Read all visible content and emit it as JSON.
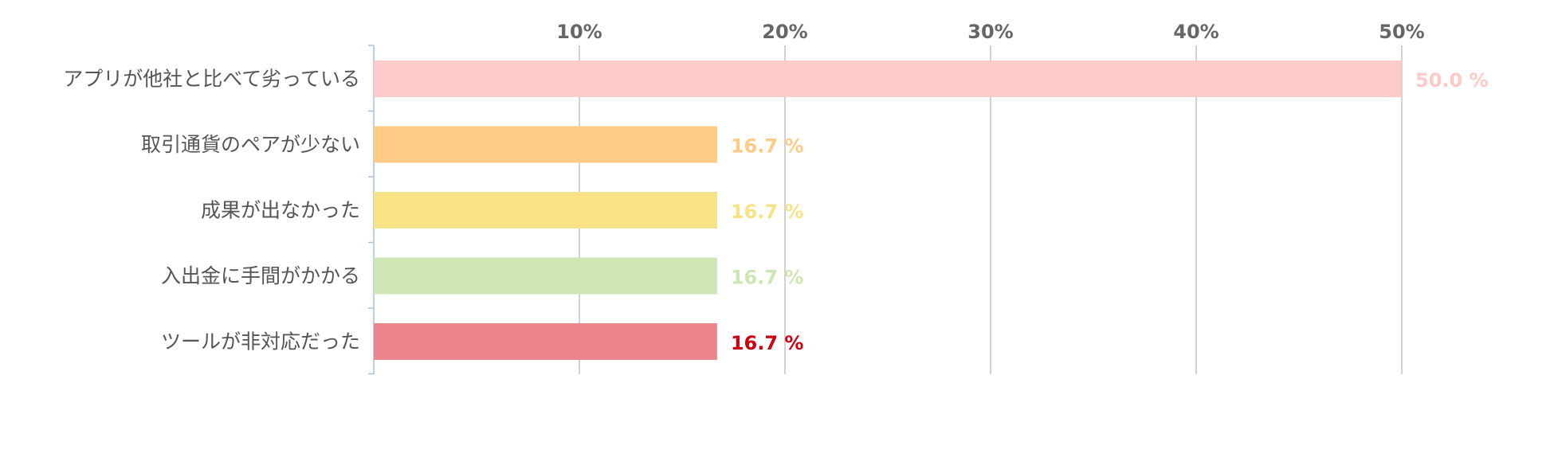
{
  "chart_data": {
    "type": "bar",
    "orientation": "horizontal",
    "categories": [
      "アプリが他社と比べて劣っている",
      "取引通貨のペアが少ない",
      "成果が出なかった",
      "入出金に手間がかかる",
      "ツールが非対応だった"
    ],
    "values": [
      50.0,
      16.7,
      16.7,
      16.7,
      16.7
    ],
    "value_labels": [
      "50.0 %",
      "16.7 %",
      "16.7 %",
      "16.7 %",
      "16.7 %"
    ],
    "bar_colors": [
      "#fdcaca",
      "#fdcb85",
      "#f7e286",
      "#cde6b3",
      "#ec858b"
    ],
    "value_label_colors": [
      "#fdcaca",
      "#fdcb85",
      "#f7e286",
      "#cde6b3",
      "#cc0011"
    ],
    "x_ticks": [
      10,
      20,
      30,
      40,
      50
    ],
    "x_tick_labels": [
      "10%",
      "20%",
      "30%",
      "40%",
      "50%"
    ],
    "xlim": [
      0,
      55
    ],
    "x_axis_position": "top",
    "grid": true,
    "legend": "none",
    "title": "",
    "xlabel": "",
    "ylabel": ""
  }
}
